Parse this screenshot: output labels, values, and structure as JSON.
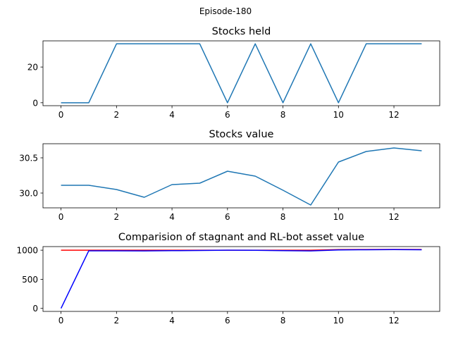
{
  "figure": {
    "suptitle": "Episode-180"
  },
  "chart_data": [
    {
      "type": "line",
      "title": "Stocks held",
      "xlabel": "",
      "ylabel": "",
      "x": [
        0,
        1,
        2,
        3,
        4,
        5,
        6,
        7,
        8,
        9,
        10,
        11,
        12,
        13
      ],
      "xlim": [
        -0.65,
        13.65
      ],
      "ylim": [
        -1.65,
        34.65
      ],
      "xticks": [
        0,
        2,
        4,
        6,
        8,
        10,
        12
      ],
      "yticks": [
        0,
        20
      ],
      "grid": false,
      "series": [
        {
          "color": "#1f77b4",
          "values": [
            0,
            0,
            33,
            33,
            33,
            33,
            0,
            33,
            0,
            33,
            0,
            33,
            33,
            33
          ]
        }
      ]
    },
    {
      "type": "line",
      "title": "Stocks value",
      "xlabel": "",
      "ylabel": "",
      "x": [
        0,
        1,
        2,
        3,
        4,
        5,
        6,
        7,
        8,
        9,
        10,
        11,
        12,
        13
      ],
      "xlim": [
        -0.65,
        13.65
      ],
      "ylim": [
        29.79,
        30.7
      ],
      "xticks": [
        0,
        2,
        4,
        6,
        8,
        10,
        12
      ],
      "yticks": [
        30.0,
        30.5
      ],
      "ytick_labels": [
        "30.0",
        "30.5"
      ],
      "grid": false,
      "series": [
        {
          "color": "#1f77b4",
          "values": [
            30.11,
            30.11,
            30.05,
            29.94,
            30.12,
            30.14,
            30.31,
            30.24,
            30.04,
            29.83,
            30.44,
            30.59,
            30.64,
            30.6
          ]
        }
      ]
    },
    {
      "type": "line",
      "title": "Comparision of stagnant and RL-bot asset value",
      "xlabel": "",
      "ylabel": "",
      "x": [
        0,
        1,
        2,
        3,
        4,
        5,
        6,
        7,
        8,
        9,
        10,
        11,
        12,
        13
      ],
      "xlim": [
        -0.65,
        13.65
      ],
      "ylim": [
        -52,
        1062
      ],
      "xticks": [
        0,
        2,
        4,
        6,
        8,
        10,
        12
      ],
      "yticks": [
        0,
        500,
        1000
      ],
      "grid": false,
      "series": [
        {
          "color": "#ff0000",
          "values": [
            1000,
            1000,
            1000,
            1000,
            1000,
            1000,
            1000,
            1000,
            1000,
            1000,
            1010,
            1012,
            1014,
            1012
          ]
        },
        {
          "color": "#0000ff",
          "values": [
            0,
            990,
            990,
            988,
            992,
            995,
            1000,
            998,
            992,
            988,
            1005,
            1008,
            1010,
            1008
          ]
        }
      ]
    }
  ]
}
